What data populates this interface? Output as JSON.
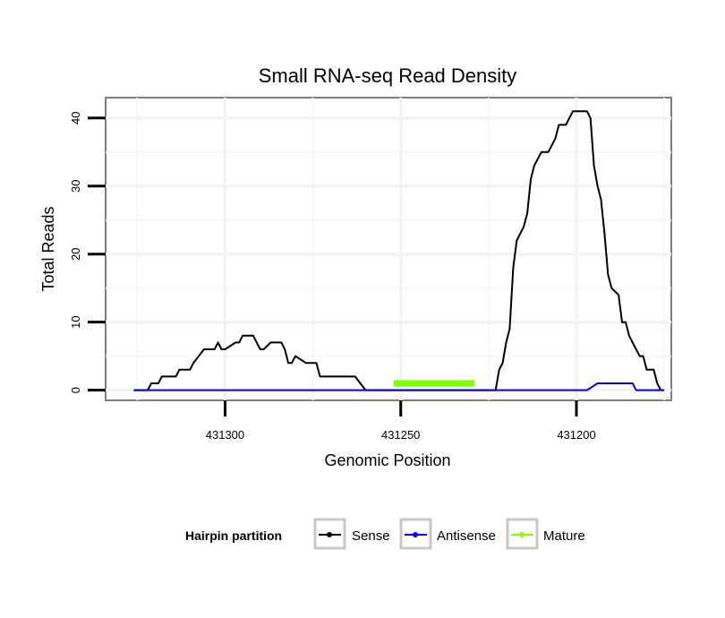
{
  "chart_data": {
    "type": "line",
    "title": "Small RNA-seq Read Density",
    "xlabel": "Genomic Position",
    "ylabel": "Total Reads",
    "x_reversed": true,
    "xlim": [
      431334,
      431173
    ],
    "ylim": [
      -1.5,
      43
    ],
    "x_ticks": [
      431300,
      431250,
      431200
    ],
    "x_tick_labels": [
      "431300",
      "431250",
      431200
    ],
    "y_ticks": [
      0,
      10,
      20,
      30,
      40
    ],
    "y_tick_labels": [
      "0",
      "10",
      "20",
      "30",
      "40"
    ],
    "grid": true,
    "legend": {
      "title": "Hairpin partition",
      "placement": "bottom",
      "entries": [
        {
          "label": "Sense",
          "color": "#000000"
        },
        {
          "label": "Antisense",
          "color": "#0000ff"
        },
        {
          "label": "Mature",
          "color": "#7fff00"
        }
      ]
    },
    "series": [
      {
        "name": "Sense",
        "color": "#000000",
        "x": [
          431326,
          431322,
          431321,
          431319,
          431318,
          431314,
          431313,
          431310,
          431309,
          431306,
          431303,
          431302,
          431301,
          431300,
          431297,
          431296,
          431295,
          431293,
          431292,
          431291,
          431290,
          431289,
          431287,
          431284,
          431283,
          431282,
          431281,
          431280,
          431277,
          431274,
          431273,
          431263,
          431260,
          431240,
          431225,
          431223,
          431222,
          431221,
          431220,
          431219,
          431218,
          431217,
          431216,
          431215,
          431214,
          431213,
          431212,
          431211,
          431210,
          431208,
          431207,
          431206,
          431205,
          431204,
          431203,
          431201,
          431197,
          431196,
          431195,
          431194,
          431193,
          431192,
          431191,
          431190,
          431188,
          431187,
          431186,
          431185,
          431184,
          431183,
          431182,
          431181,
          431180,
          431179,
          431178,
          431177,
          431176,
          431175
        ],
        "values": [
          0,
          0,
          1,
          1,
          2,
          2,
          3,
          3,
          4,
          6,
          6,
          7,
          6,
          6,
          7,
          7,
          8,
          8,
          8,
          7,
          6,
          6,
          7,
          7,
          6,
          4,
          4,
          5,
          4,
          4,
          2,
          2,
          0,
          0,
          0,
          0,
          3,
          4,
          7,
          9,
          18,
          22,
          23,
          24,
          26,
          31,
          33,
          34,
          35,
          35,
          36,
          37,
          39,
          39,
          39,
          41,
          41,
          40,
          33,
          30,
          28,
          23,
          17,
          15,
          14,
          10,
          10,
          8,
          7,
          6,
          5,
          5,
          3,
          3,
          3,
          1,
          0,
          0
        ]
      },
      {
        "name": "Antisense",
        "color": "#0000ff",
        "x": [
          431326,
          431214,
          431213,
          431197,
          431194,
          431193,
          431184,
          431183,
          431175
        ],
        "values": [
          0,
          0,
          0,
          0,
          1,
          1,
          1,
          0,
          0
        ]
      },
      {
        "name": "Mature",
        "color": "#7fff00",
        "x": [
          431252,
          431229
        ],
        "values": [
          1,
          1
        ]
      }
    ]
  }
}
